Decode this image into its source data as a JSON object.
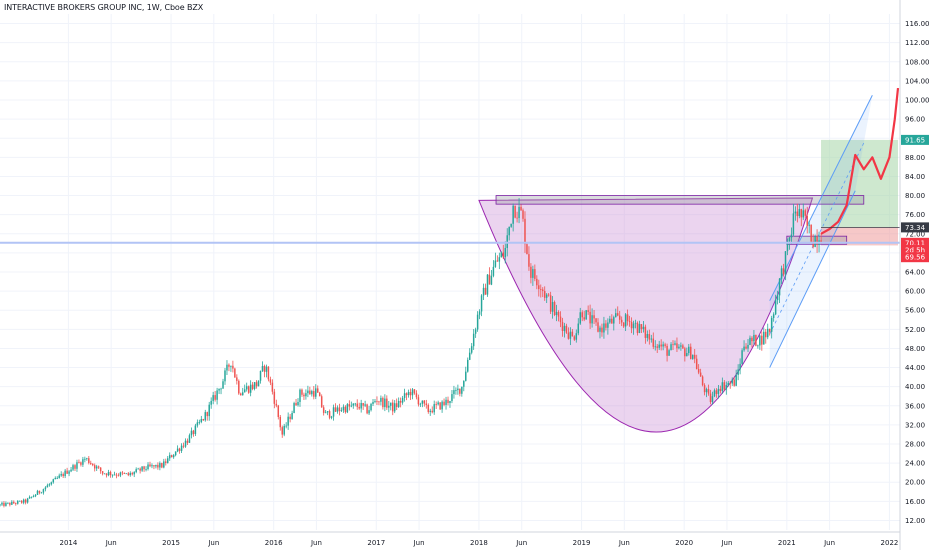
{
  "header": {
    "title": "INTERACTIVE BROKERS GROUP INC, 1W, Cboe BZX"
  },
  "colors": {
    "up": "#26a69a",
    "down": "#ef5350",
    "cup_fill": "#ce93d8",
    "cup_stroke": "#9c27b0",
    "channel": "#5b9cf6",
    "target_fill": "#a5d6a7",
    "stop_fill": "#ef9a9a",
    "projection": "#f23645",
    "green_tag": "#26a69a",
    "red_tag": "#f23645",
    "dark_tag": "#363a45",
    "grid": "#f0f3fa"
  },
  "chart_data": {
    "type": "candlestick",
    "interval": "1W",
    "ylim": [
      10,
      118
    ],
    "x_range": [
      "2013-05",
      "2022-02"
    ],
    "y_ticks": [
      "12.00",
      "16.00",
      "20.00",
      "24.00",
      "28.00",
      "32.00",
      "36.00",
      "40.00",
      "44.00",
      "48.00",
      "52.00",
      "56.00",
      "60.00",
      "64.00",
      "68.00",
      "72.00",
      "76.00",
      "80.00",
      "84.00",
      "88.00",
      "92.00",
      "96.00",
      "100.00",
      "104.00",
      "108.00",
      "112.00",
      "116.00"
    ],
    "x_ticks": [
      {
        "label": "2014",
        "date": "2014-01"
      },
      {
        "label": "Jun",
        "date": "2014-06"
      },
      {
        "label": "2015",
        "date": "2015-01"
      },
      {
        "label": "Jun",
        "date": "2015-06"
      },
      {
        "label": "2016",
        "date": "2016-01"
      },
      {
        "label": "Jun",
        "date": "2016-06"
      },
      {
        "label": "2017",
        "date": "2017-01"
      },
      {
        "label": "Jun",
        "date": "2017-06"
      },
      {
        "label": "2018",
        "date": "2018-01"
      },
      {
        "label": "Jun",
        "date": "2018-06"
      },
      {
        "label": "2019",
        "date": "2019-01"
      },
      {
        "label": "Jun",
        "date": "2019-06"
      },
      {
        "label": "2020",
        "date": "2020-01"
      },
      {
        "label": "Jun",
        "date": "2020-06"
      },
      {
        "label": "2021",
        "date": "2021-01"
      },
      {
        "label": "Jun",
        "date": "2021-06"
      },
      {
        "label": "2022",
        "date": "2022-01"
      }
    ],
    "price_path": [
      [
        "2013-05",
        15.2
      ],
      [
        "2013-08",
        16.0
      ],
      [
        "2013-11",
        19.8
      ],
      [
        "2014-01",
        22.5
      ],
      [
        "2014-03",
        25.0
      ],
      [
        "2014-05",
        22.0
      ],
      [
        "2014-08",
        21.5
      ],
      [
        "2014-10",
        23.0
      ],
      [
        "2014-12",
        23.5
      ],
      [
        "2015-01",
        25.5
      ],
      [
        "2015-03",
        29.0
      ],
      [
        "2015-05",
        34.0
      ],
      [
        "2015-07",
        41.0
      ],
      [
        "2015-08",
        45.5
      ],
      [
        "2015-09",
        39.0
      ],
      [
        "2015-11",
        40.5
      ],
      [
        "2015-12",
        44.5
      ],
      [
        "2016-01",
        38.0
      ],
      [
        "2016-02",
        30.0
      ],
      [
        "2016-04",
        38.5
      ],
      [
        "2016-06",
        39.0
      ],
      [
        "2016-07",
        34.0
      ],
      [
        "2016-09",
        35.5
      ],
      [
        "2016-11",
        36.0
      ],
      [
        "2016-12",
        35.0
      ],
      [
        "2017-01",
        37.5
      ],
      [
        "2017-03",
        35.5
      ],
      [
        "2017-05",
        39.0
      ],
      [
        "2017-07",
        35.0
      ],
      [
        "2017-09",
        36.5
      ],
      [
        "2017-11",
        40.0
      ],
      [
        "2018-01",
        56.0
      ],
      [
        "2018-02",
        62.0
      ],
      [
        "2018-03",
        66.0
      ],
      [
        "2018-04",
        68.0
      ],
      [
        "2018-05",
        78.0
      ],
      [
        "2018-06",
        76.0
      ],
      [
        "2018-07",
        64.0
      ],
      [
        "2018-08",
        62.0
      ],
      [
        "2018-10",
        55.0
      ],
      [
        "2018-12",
        50.0
      ],
      [
        "2019-01",
        56.0
      ],
      [
        "2019-03",
        52.0
      ],
      [
        "2019-05",
        54.0
      ],
      [
        "2019-07",
        53.5
      ],
      [
        "2019-09",
        50.0
      ],
      [
        "2019-11",
        47.5
      ],
      [
        "2019-12",
        48.0
      ],
      [
        "2020-02",
        47.0
      ],
      [
        "2020-03",
        41.0
      ],
      [
        "2020-04",
        37.0
      ],
      [
        "2020-05",
        40.0
      ],
      [
        "2020-07",
        41.0
      ],
      [
        "2020-08",
        49.0
      ],
      [
        "2020-10",
        50.0
      ],
      [
        "2020-11",
        52.0
      ],
      [
        "2020-12",
        61.0
      ],
      [
        "2021-01",
        68.0
      ],
      [
        "2021-02",
        77.0
      ],
      [
        "2021-03",
        75.0
      ],
      [
        "2021-04",
        71.0
      ],
      [
        "2021-05",
        72.0
      ]
    ],
    "price_lines": [
      {
        "label": "91.65",
        "value": 91.65,
        "color": "green_tag"
      },
      {
        "label": "73.34",
        "value": 73.34,
        "color": "dark_tag"
      },
      {
        "label": "70.11",
        "value": 70.11,
        "color": "red_tag"
      },
      {
        "label": "2d 5h",
        "value": 68.6,
        "color": "red_tag"
      },
      {
        "label": "69.56",
        "value": 67.1,
        "color": "red_tag"
      }
    ],
    "annotations": {
      "cup": {
        "start": [
          "2018-01",
          79.0
        ],
        "bottom": [
          "2019-11",
          30.5
        ],
        "end": [
          "2021-04",
          79.5
        ]
      },
      "resistance_box": {
        "x": [
          "2018-03",
          "2021-10"
        ],
        "y": [
          78.2,
          80.0
        ]
      },
      "support_box": {
        "x": [
          "2021-01",
          "2021-08"
        ],
        "y": [
          69.8,
          71.5
        ]
      },
      "target_zone": {
        "x": [
          "2021-05",
          "2022-02"
        ],
        "y": [
          73.34,
          91.65
        ]
      },
      "stop_zone": {
        "x": [
          "2021-05",
          "2022-02"
        ],
        "y": [
          69.56,
          73.34
        ]
      },
      "channel_upper": [
        [
          "2020-11",
          58.0
        ],
        [
          "2021-11",
          101.0
        ]
      ],
      "channel_lower": [
        [
          "2020-11",
          44.0
        ],
        [
          "2021-09",
          81.0
        ]
      ],
      "projection": [
        [
          "2021-05",
          72.0
        ],
        [
          "2021-06",
          73.0
        ],
        [
          "2021-07",
          74.5
        ],
        [
          "2021-08",
          78.0
        ],
        [
          "2021-09",
          88.5
        ],
        [
          "2021-10",
          85.5
        ],
        [
          "2021-11",
          88.0
        ],
        [
          "2021-12",
          83.5
        ],
        [
          "2022-01",
          88.0
        ],
        [
          "2022-01-20",
          96.0
        ],
        [
          "2022-02",
          102.5
        ]
      ]
    }
  }
}
